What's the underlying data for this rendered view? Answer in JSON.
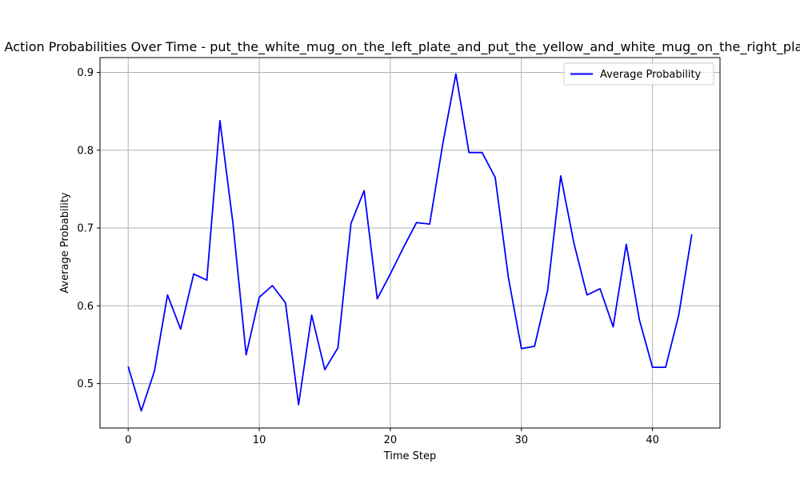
{
  "chart_data": {
    "type": "line",
    "title": "Action Probabilities Over Time - put_the_white_mug_on_the_left_plate_and_put_the_yellow_and_white_mug_on_the_right_plate",
    "xlabel": "Time Step",
    "ylabel": "Average Probability",
    "xlim": [
      -2.15,
      45.15
    ],
    "ylim": [
      0.443,
      0.919
    ],
    "xticks": [
      0,
      10,
      20,
      30,
      40
    ],
    "yticks": [
      0.5,
      0.6,
      0.7,
      0.8,
      0.9
    ],
    "grid": true,
    "legend_position": "top-right",
    "series": [
      {
        "name": "Average Probability",
        "color": "#0000ff",
        "x": [
          0,
          1,
          2,
          3,
          4,
          5,
          6,
          7,
          8,
          9,
          10,
          11,
          12,
          13,
          14,
          15,
          16,
          17,
          18,
          19,
          20,
          21,
          22,
          23,
          24,
          25,
          26,
          27,
          28,
          29,
          30,
          31,
          32,
          33,
          34,
          35,
          36,
          37,
          38,
          39,
          40,
          41,
          42,
          43
        ],
        "y": [
          0.522,
          0.465,
          0.516,
          0.614,
          0.57,
          0.641,
          0.633,
          0.838,
          0.705,
          0.537,
          0.611,
          0.626,
          0.604,
          0.473,
          0.588,
          0.518,
          0.546,
          0.706,
          0.748,
          0.609,
          0.641,
          0.675,
          0.707,
          0.705,
          0.808,
          0.898,
          0.797,
          0.797,
          0.765,
          0.637,
          0.545,
          0.548,
          0.62,
          0.767,
          0.681,
          0.614,
          0.622,
          0.573,
          0.679,
          0.582,
          0.521,
          0.521,
          0.588,
          0.692
        ]
      }
    ]
  }
}
